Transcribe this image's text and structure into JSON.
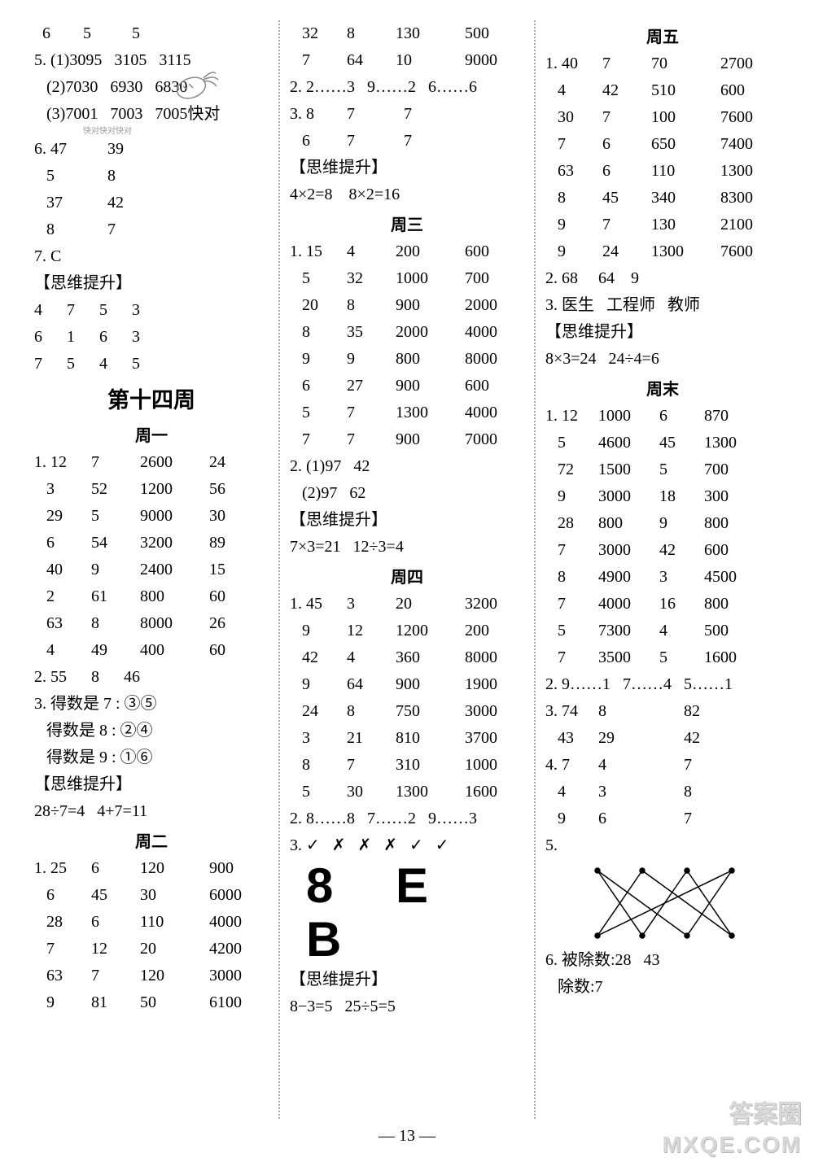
{
  "pageNumber": "— 13 —",
  "watermark": {
    "cn": "答案圈",
    "en": "MXQE.COM"
  },
  "labels": {
    "siwei": "【思维提升】",
    "week14": "第十四周",
    "d1": "周一",
    "d2": "周二",
    "d3": "周三",
    "d4": "周四",
    "d5": "周五",
    "dw": "周末"
  },
  "col1": {
    "r0": [
      "  6",
      "5",
      "5"
    ],
    "r1": "5. (1)3095   3105   3115",
    "r2": "   (2)7030   6930   6830",
    "r3": "   (3)7001   7003   7005快对",
    "r3b": "                        快对快对快对",
    "r4": [
      "6. 47",
      "39"
    ],
    "r5": [
      "   5",
      "8"
    ],
    "r6": [
      "   37",
      "42"
    ],
    "r7": [
      "   8",
      "7"
    ],
    "r8": "7. C",
    "m1": [
      "4",
      "7",
      "5",
      "3"
    ],
    "m2": [
      "6",
      "1",
      "6",
      "3"
    ],
    "m3": [
      "7",
      "5",
      "4",
      "5"
    ],
    "d1t": [
      [
        "1. 12",
        "7",
        "2600",
        "24"
      ],
      [
        "   3",
        "52",
        "1200",
        "56"
      ],
      [
        "   29",
        "5",
        "9000",
        "30"
      ],
      [
        "   6",
        "54",
        "3200",
        "89"
      ],
      [
        "   40",
        "9",
        "2400",
        "15"
      ],
      [
        "   2",
        "61",
        "800",
        "60"
      ],
      [
        "   63",
        "8",
        "8000",
        "26"
      ],
      [
        "   4",
        "49",
        "400",
        "60"
      ]
    ],
    "d1a": "2. 55      8      46",
    "d1b": "3. 得数是 7 : ③⑤",
    "d1c": "   得数是 8 : ②④",
    "d1d": "   得数是 9 : ①⑥",
    "d1s": "28÷7=4   4+7=11",
    "d2t": [
      [
        "1. 25",
        "6",
        "120",
        "900"
      ],
      [
        "   6",
        "45",
        "30",
        "6000"
      ],
      [
        "   28",
        "6",
        "110",
        "4000"
      ],
      [
        "   7",
        "12",
        "20",
        "4200"
      ],
      [
        "   63",
        "7",
        "120",
        "3000"
      ],
      [
        "   9",
        "81",
        "50",
        "6100"
      ]
    ]
  },
  "col2": {
    "top": [
      [
        "   32",
        "8",
        "130",
        "500"
      ],
      [
        "   7",
        "64",
        "10",
        "9000"
      ]
    ],
    "r2": "2. 2……3   9……2   6……6",
    "r3a": [
      "3. 8",
      "7",
      "7"
    ],
    "r3b": [
      "   6",
      "7",
      "7"
    ],
    "s1": "4×2=8    8×2=16",
    "d3t": [
      [
        "1. 15",
        "4",
        "200",
        "600"
      ],
      [
        "   5",
        "32",
        "1000",
        "700"
      ],
      [
        "   20",
        "8",
        "900",
        "2000"
      ],
      [
        "   8",
        "35",
        "2000",
        "4000"
      ],
      [
        "   9",
        "9",
        "800",
        "8000"
      ],
      [
        "   6",
        "27",
        "900",
        "600"
      ],
      [
        "   5",
        "7",
        "1300",
        "4000"
      ],
      [
        "   7",
        "7",
        "900",
        "7000"
      ]
    ],
    "d3a": "2. (1)97   42",
    "d3b": "   (2)97   62",
    "d3s": "7×3=21   12÷3=4",
    "d4t": [
      [
        "1. 45",
        "3",
        "20",
        "3200"
      ],
      [
        "   9",
        "12",
        "1200",
        "200"
      ],
      [
        "   42",
        "4",
        "360",
        "8000"
      ],
      [
        "   9",
        "64",
        "900",
        "1900"
      ],
      [
        "   24",
        "8",
        "750",
        "3000"
      ],
      [
        "   3",
        "21",
        "810",
        "3700"
      ],
      [
        "   8",
        "7",
        "310",
        "1000"
      ],
      [
        "   5",
        "30",
        "1300",
        "1600"
      ]
    ],
    "d4a": "2. 8……8   7……2   9……3",
    "d4b": "3. ✓   ✗   ✗   ✗   ✓   ✓",
    "big": "8  E  B",
    "d4s": "8−3=5   25÷5=5"
  },
  "col3": {
    "d5t": [
      [
        "1. 40",
        "7",
        "70",
        "2700"
      ],
      [
        "   4",
        "42",
        "510",
        "600"
      ],
      [
        "   30",
        "7",
        "100",
        "7600"
      ],
      [
        "   7",
        "6",
        "650",
        "7400"
      ],
      [
        "   63",
        "6",
        "110",
        "1300"
      ],
      [
        "   8",
        "45",
        "340",
        "8300"
      ],
      [
        "   9",
        "7",
        "130",
        "2100"
      ],
      [
        "   9",
        "24",
        "1300",
        "7600"
      ]
    ],
    "d5a": "2. 68     64    9",
    "d5b": "3. 医生   工程师   教师",
    "d5s": "8×3=24   24÷4=6",
    "dwt": [
      [
        "1. 12",
        "1000",
        "6",
        "870"
      ],
      [
        "   5",
        "4600",
        "45",
        "1300"
      ],
      [
        "   72",
        "1500",
        "5",
        "700"
      ],
      [
        "   9",
        "3000",
        "18",
        "300"
      ],
      [
        "   28",
        "800",
        "9",
        "800"
      ],
      [
        "   7",
        "3000",
        "42",
        "600"
      ],
      [
        "   8",
        "4900",
        "3",
        "4500"
      ],
      [
        "   7",
        "4000",
        "16",
        "800"
      ],
      [
        "   5",
        "7300",
        "4",
        "500"
      ],
      [
        "   7",
        "3500",
        "5",
        "1600"
      ]
    ],
    "dwa": "2. 9……1   7……4   5……1",
    "dwb1": [
      "3. 74",
      "8",
      "",
      "82"
    ],
    "dwb2": [
      "   43",
      "29",
      "",
      "42"
    ],
    "dwc1": [
      "4. 7",
      "4",
      "",
      "7"
    ],
    "dwc2": [
      "   4",
      "3",
      "",
      "8"
    ],
    "dwc3": [
      "   9",
      "6",
      "",
      "7"
    ],
    "dw5": "5.",
    "dw6": "6. 被除数:28   43",
    "dw7": "   除数:7"
  }
}
